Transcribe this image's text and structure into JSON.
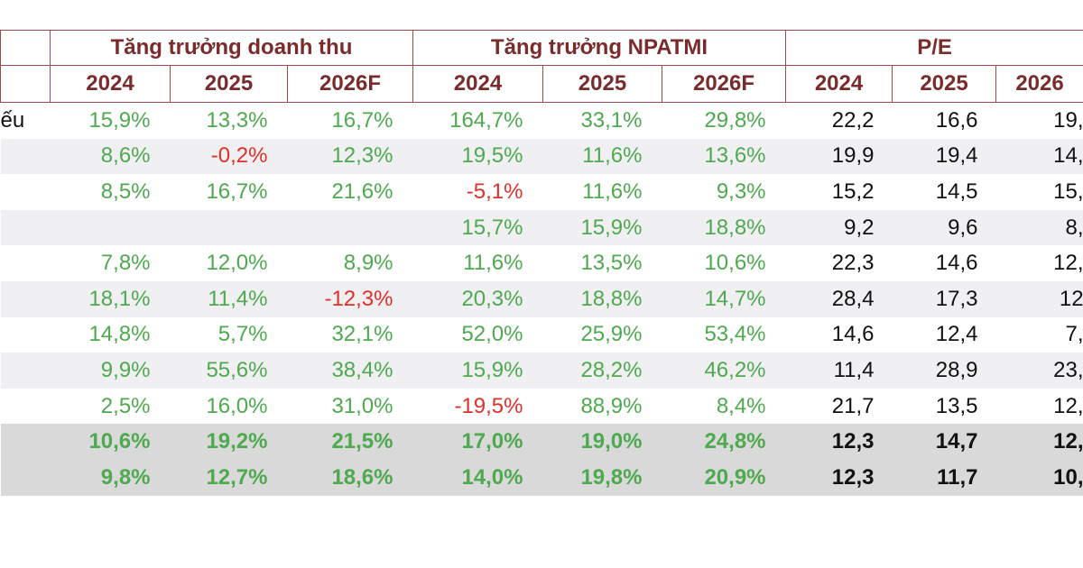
{
  "table": {
    "header_groups": [
      "Tăng trưởng doanh thu",
      "Tăng trưởng NPATMI",
      "P/E"
    ],
    "years": [
      [
        "2024",
        "2025",
        "2026F"
      ],
      [
        "2024",
        "2025",
        "2026F"
      ],
      [
        "2024",
        "2025",
        "2026"
      ]
    ],
    "rows": [
      [
        "ếu",
        "15,9%",
        "13,3%",
        "16,7%",
        "164,7%",
        "33,1%",
        "29,8%",
        "22,2",
        "16,6",
        "19,"
      ],
      [
        null,
        "8,6%",
        "-0,2%",
        "12,3%",
        "19,5%",
        "11,6%",
        "13,6%",
        "19,9",
        "19,4",
        "14,"
      ],
      [
        null,
        "8,5%",
        "16,7%",
        "21,6%",
        "-5,1%",
        "11,6%",
        "9,3%",
        "15,2",
        "14,5",
        "15,"
      ],
      [
        null,
        null,
        null,
        null,
        "15,7%",
        "15,9%",
        "18,8%",
        "9,2",
        "9,6",
        "8,"
      ],
      [
        null,
        "7,8%",
        "12,0%",
        "8,9%",
        "11,6%",
        "13,5%",
        "10,6%",
        "22,3",
        "14,6",
        "12,"
      ],
      [
        null,
        "18,1%",
        "11,4%",
        "-12,3%",
        "20,3%",
        "18,8%",
        "14,7%",
        "28,4",
        "17,3",
        "12"
      ],
      [
        null,
        "14,8%",
        "5,7%",
        "32,1%",
        "52,0%",
        "25,9%",
        "53,4%",
        "14,6",
        "12,4",
        "7,"
      ],
      [
        null,
        "9,9%",
        "55,6%",
        "38,4%",
        "15,9%",
        "28,2%",
        "46,2%",
        "11,4",
        "28,9",
        "23,"
      ],
      [
        null,
        "2,5%",
        "16,0%",
        "31,0%",
        "-19,5%",
        "88,9%",
        "8,4%",
        "21,7",
        "13,5",
        "12,"
      ],
      [
        null,
        "10,6%",
        "19,2%",
        "21,5%",
        "17,0%",
        "19,0%",
        "24,8%",
        "12,3",
        "14,7",
        "12,"
      ],
      [
        null,
        "9,8%",
        "12,7%",
        "18,6%",
        "14,0%",
        "19,8%",
        "20,9%",
        "12,3",
        "11,7",
        "10,"
      ]
    ]
  }
}
